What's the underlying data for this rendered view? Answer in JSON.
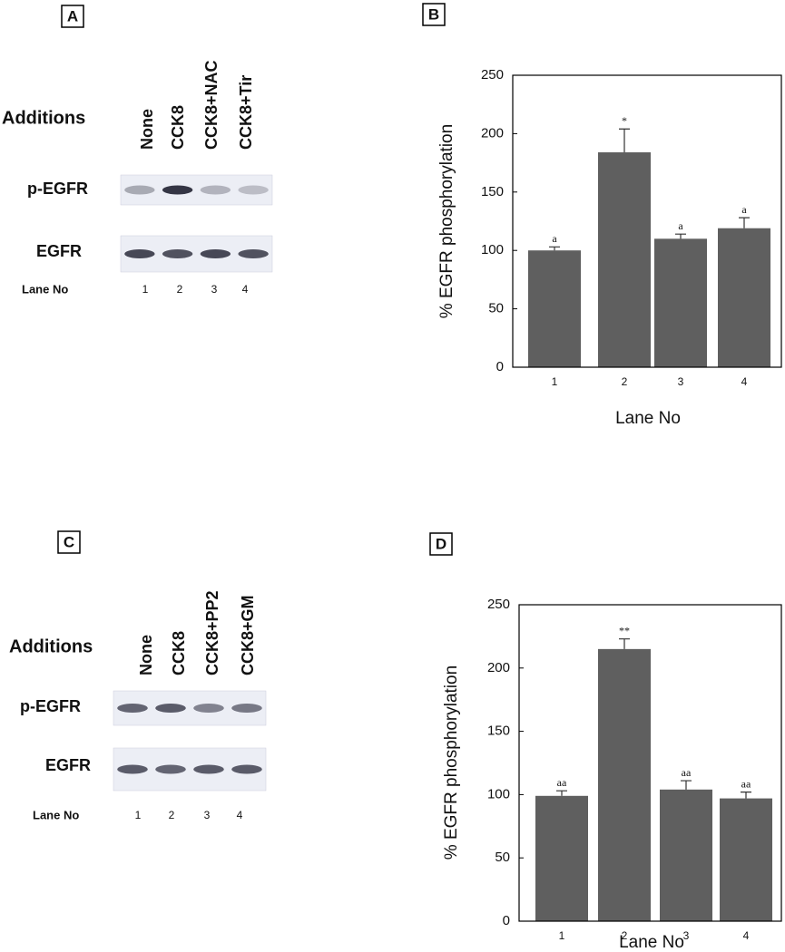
{
  "blots": [
    {
      "panel_label": "A",
      "additions_label": "Additions",
      "lanes": [
        "None",
        "CCK8",
        "CCK8+NAC",
        "CCK8+Tir"
      ],
      "rows": [
        "p-EGFR",
        "EGFR"
      ],
      "lane_no_label": "Lane No",
      "lane_numbers": [
        "1",
        "2",
        "3",
        "4"
      ]
    },
    {
      "panel_label": "C",
      "additions_label": "Additions",
      "lanes": [
        "None",
        "CCK8",
        "CCK8+PP2",
        "CCK8+GM"
      ],
      "rows": [
        "p-EGFR",
        "EGFR"
      ],
      "lane_no_label": "Lane No",
      "lane_numbers": [
        "1",
        "2",
        "3",
        "4"
      ]
    }
  ],
  "chart_data": [
    {
      "type": "bar",
      "panel_label": "B",
      "xlabel": "Lane No",
      "ylabel": "% EGFR phosphorylation",
      "categories": [
        "1",
        "2",
        "3",
        "4"
      ],
      "values": [
        100,
        184,
        110,
        119
      ],
      "errors": [
        3,
        20,
        4,
        9
      ],
      "annotations": [
        "a",
        "*",
        "a",
        "a"
      ],
      "color": "#5f5f5f",
      "ylim": [
        0,
        250
      ],
      "yticks": [
        0,
        50,
        100,
        150,
        200,
        250
      ]
    },
    {
      "type": "bar",
      "panel_label": "D",
      "xlabel": "Lane No",
      "ylabel": "% EGFR phosphorylation",
      "categories": [
        "1",
        "2",
        "3",
        "4"
      ],
      "values": [
        99,
        215,
        104,
        97
      ],
      "errors": [
        4,
        8,
        7,
        5
      ],
      "annotations": [
        "aa",
        "**",
        "aa",
        "aa"
      ],
      "color": "#5f5f5f",
      "ylim": [
        0,
        250
      ],
      "yticks": [
        0,
        50,
        100,
        150,
        200,
        250
      ]
    }
  ]
}
